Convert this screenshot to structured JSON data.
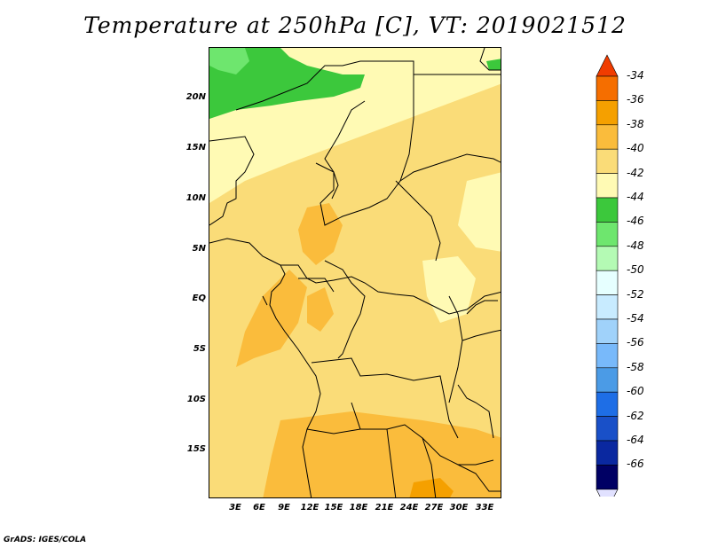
{
  "title": "Temperature at 250hPa [C], VT: 2019021512",
  "footer": "GrADS: IGES/COLA",
  "map": {
    "lat_labels": [
      "20N",
      "15N",
      "10N",
      "5N",
      "EQ",
      "5S",
      "10S",
      "15S"
    ],
    "lon_labels": [
      "3E",
      "6E",
      "9E",
      "12E",
      "15E",
      "18E",
      "21E",
      "24E",
      "27E",
      "30E",
      "33E"
    ]
  },
  "colorbar": {
    "labels": [
      "-34",
      "-36",
      "-38",
      "-40",
      "-42",
      "-44",
      "-46",
      "-48",
      "-50",
      "-52",
      "-54",
      "-56",
      "-58",
      "-60",
      "-62",
      "-64",
      "-66"
    ],
    "colors": [
      "#f03c00",
      "#f56e00",
      "#f5a000",
      "#fabc3c",
      "#fadc78",
      "#fffab4",
      "#3cc83c",
      "#6ee66e",
      "#b4fab4",
      "#e6ffff",
      "#c8ebff",
      "#a0d2fa",
      "#78b9fa",
      "#4b9be6",
      "#1e6ee6",
      "#1950c8",
      "#0a28a0",
      "#000064",
      "#e1e1ff"
    ]
  }
}
